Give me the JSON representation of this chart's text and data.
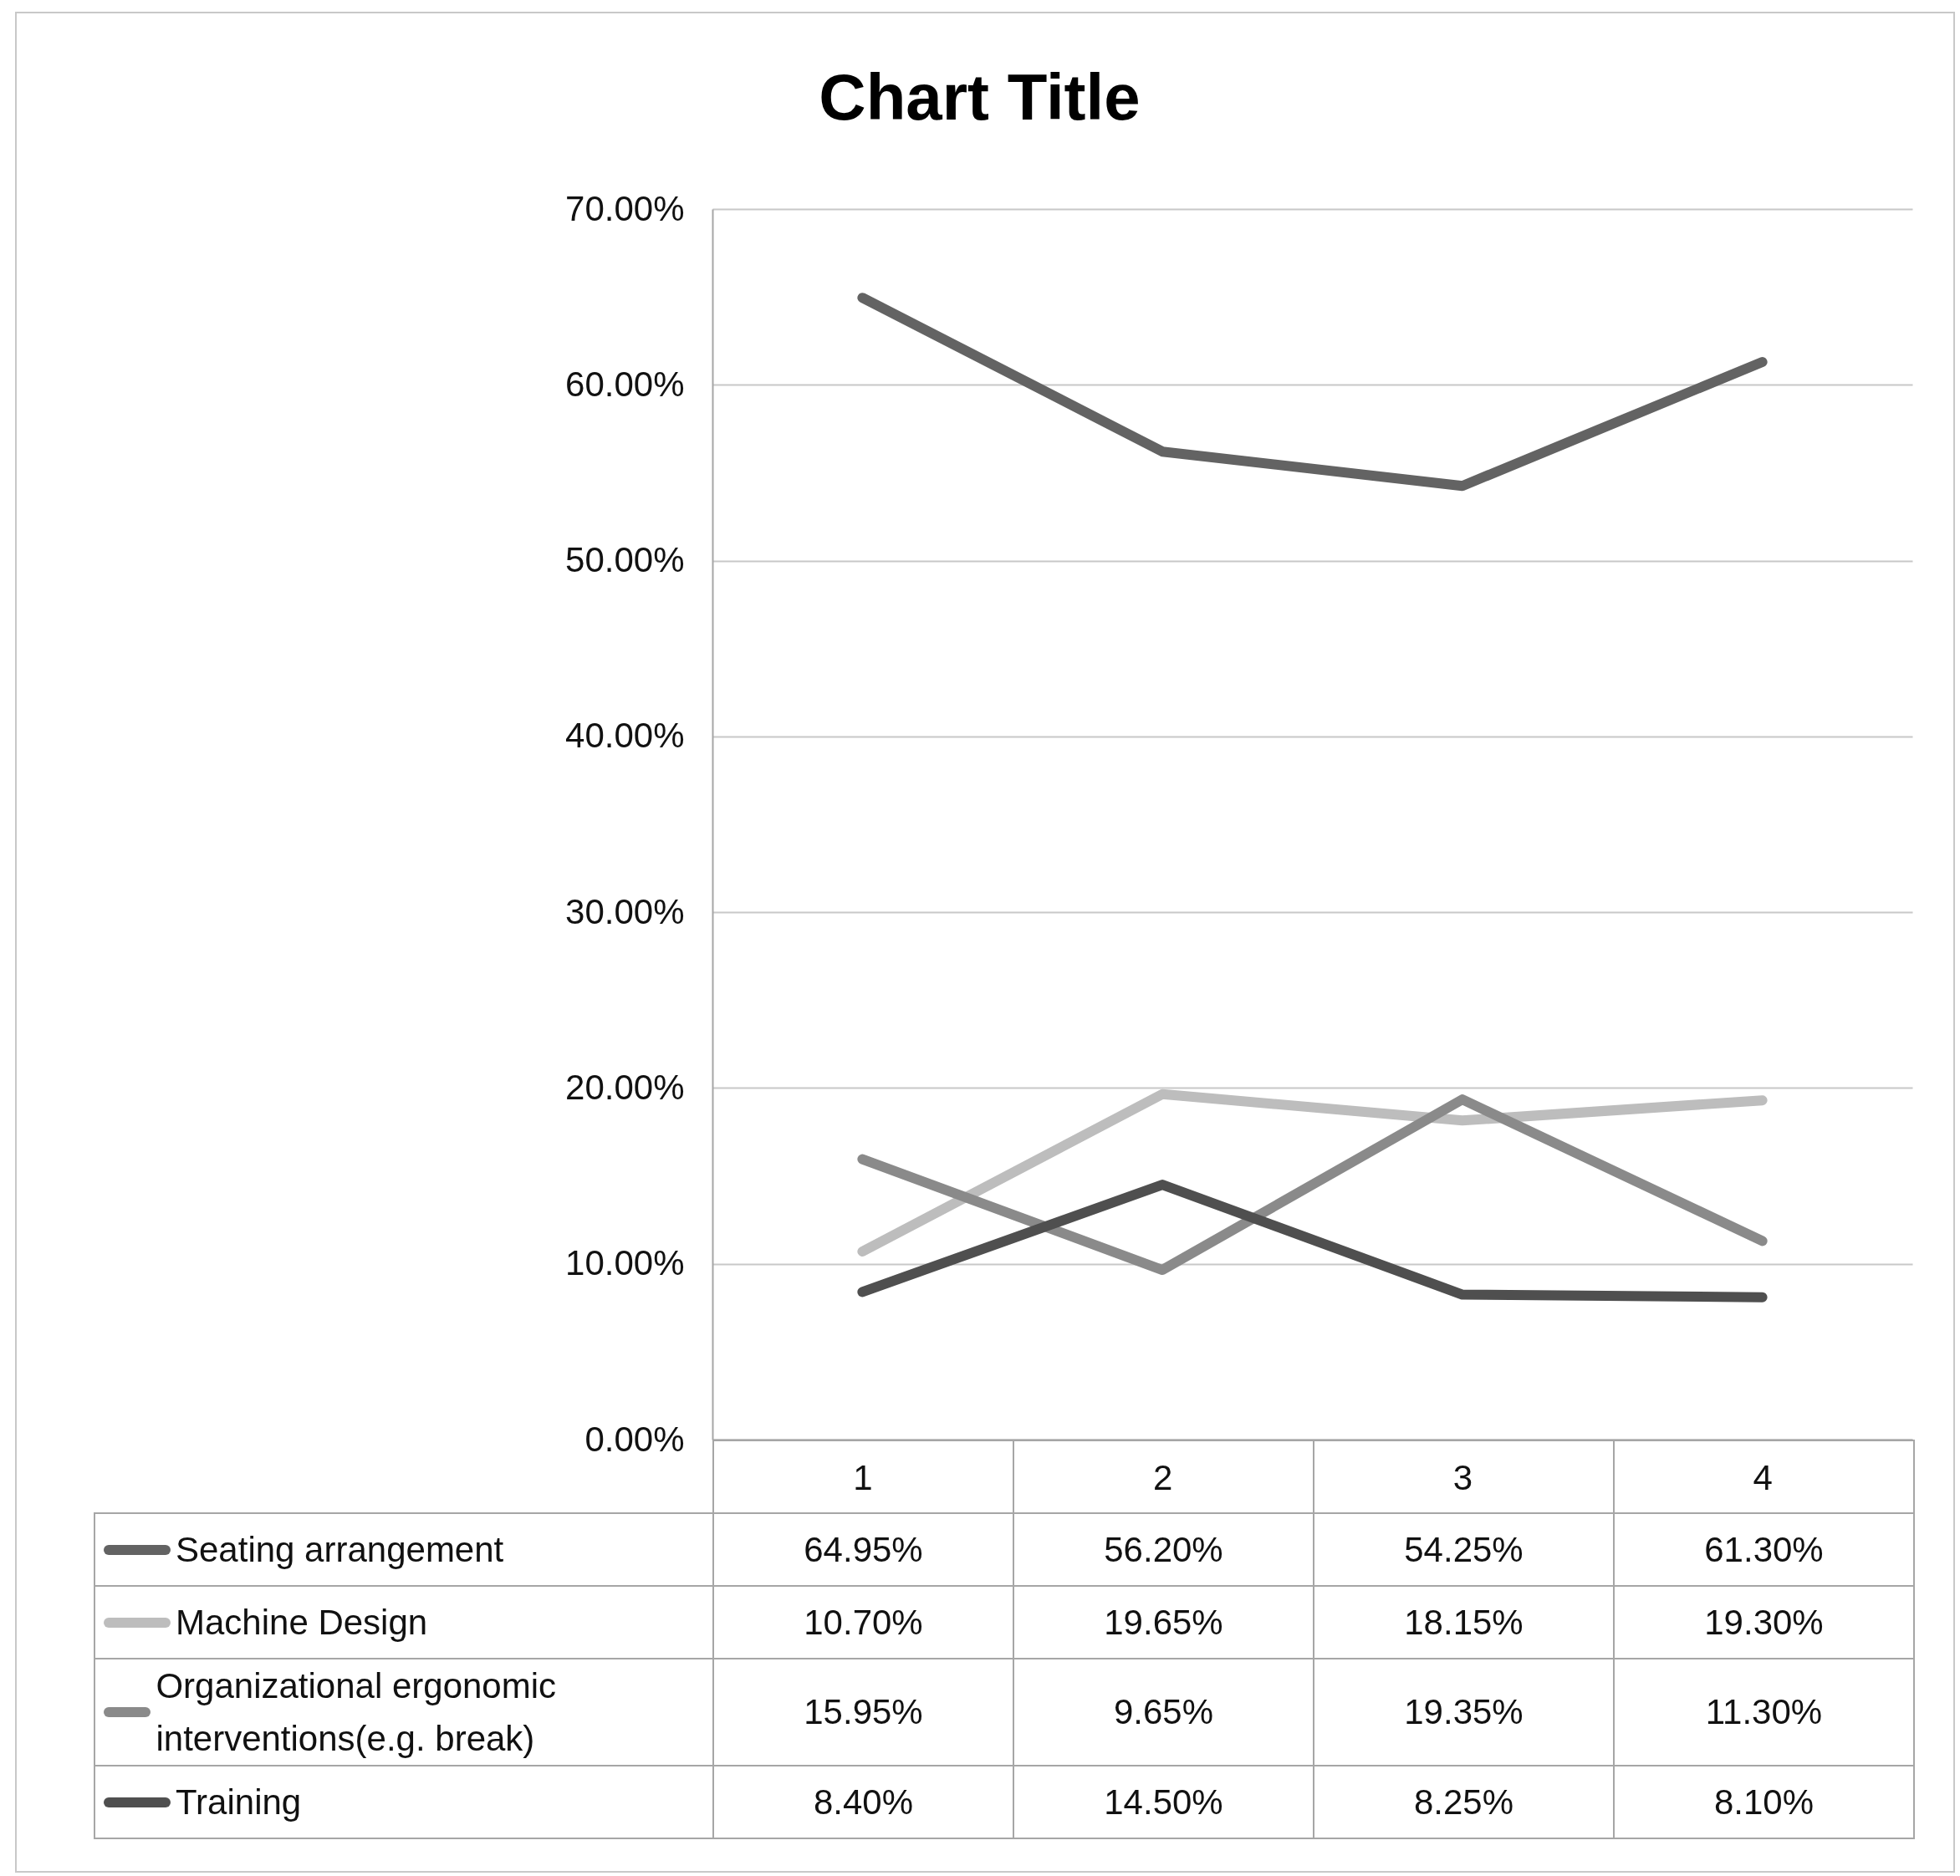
{
  "chart_data": {
    "type": "line",
    "title": "Chart Title",
    "categories": [
      "1",
      "2",
      "3",
      "4"
    ],
    "ylim": [
      0,
      70
    ],
    "yticks": [
      {
        "value": 0,
        "label": "0.00%"
      },
      {
        "value": 10,
        "label": "10.00%"
      },
      {
        "value": 20,
        "label": "20.00%"
      },
      {
        "value": 30,
        "label": "30.00%"
      },
      {
        "value": 40,
        "label": "40.00%"
      },
      {
        "value": 50,
        "label": "50.00%"
      },
      {
        "value": 60,
        "label": "60.00%"
      },
      {
        "value": 70,
        "label": "70.00%"
      }
    ],
    "grid": "y",
    "legend": "bottom",
    "series": [
      {
        "name": "Seating arrangement",
        "color": "#636363",
        "values": [
          64.95,
          56.2,
          54.25,
          61.3
        ],
        "value_labels": [
          "64.95%",
          "56.20%",
          "54.25%",
          "61.30%"
        ]
      },
      {
        "name": "Machine Design",
        "color": "#bdbdbd",
        "values": [
          10.7,
          19.65,
          18.15,
          19.3
        ],
        "value_labels": [
          "10.70%",
          "19.65%",
          "18.15%",
          "19.30%"
        ]
      },
      {
        "name": "Organizational ergonomic interventions(e.g. break)",
        "color": "#8a8a8a",
        "values": [
          15.95,
          9.65,
          19.35,
          11.3
        ],
        "value_labels": [
          "15.95%",
          "9.65%",
          "19.35%",
          "11.30%"
        ]
      },
      {
        "name": "Training",
        "color": "#4f4f4f",
        "values": [
          8.4,
          14.5,
          8.25,
          8.1
        ],
        "value_labels": [
          "8.40%",
          "14.50%",
          "8.25%",
          "8.10%"
        ]
      }
    ]
  }
}
